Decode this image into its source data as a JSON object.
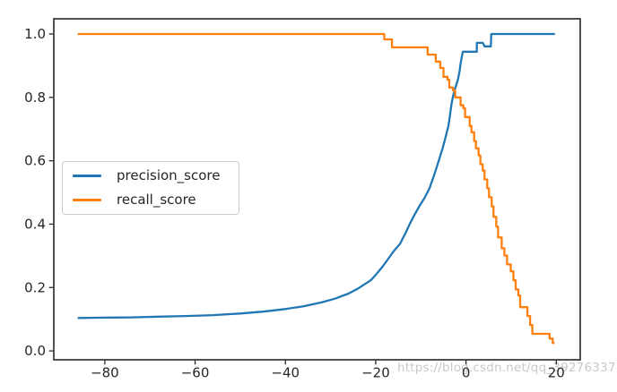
{
  "figure": {
    "background": "#ffffff",
    "watermark_text": "https://blog.csdn.net/qq_39276337"
  },
  "chart_data": {
    "type": "line",
    "title": "",
    "xlabel": "",
    "ylabel": "",
    "grid": false,
    "legend_position": "center-left",
    "axis_color": "#262626",
    "tick_label_color": "#262626",
    "xlim": [
      -91.3,
      25.3
    ],
    "ylim": [
      -0.028,
      1.048
    ],
    "x_ticks": [
      -80,
      -60,
      -40,
      -20,
      0,
      20
    ],
    "x_tick_labels": [
      "−80",
      "−60",
      "−40",
      "−20",
      "0",
      "20"
    ],
    "y_ticks": [
      0.0,
      0.2,
      0.4,
      0.6,
      0.8,
      1.0
    ],
    "y_tick_labels": [
      "0.0",
      "0.2",
      "0.4",
      "0.6",
      "0.8",
      "1.0"
    ],
    "series": [
      {
        "name": "precision_score",
        "color": "#1f77b4",
        "points": [
          [
            -86,
            0.104
          ],
          [
            -80,
            0.105
          ],
          [
            -74,
            0.106
          ],
          [
            -68,
            0.108
          ],
          [
            -62,
            0.11
          ],
          [
            -56,
            0.113
          ],
          [
            -50,
            0.118
          ],
          [
            -45,
            0.124
          ],
          [
            -40,
            0.132
          ],
          [
            -36,
            0.141
          ],
          [
            -32,
            0.153
          ],
          [
            -29,
            0.165
          ],
          [
            -26,
            0.181
          ],
          [
            -24,
            0.196
          ],
          [
            -22.5,
            0.21
          ],
          [
            -21,
            0.224
          ],
          [
            -20,
            0.24
          ],
          [
            -18.7,
            0.262
          ],
          [
            -17.4,
            0.287
          ],
          [
            -16,
            0.315
          ],
          [
            -14.6,
            0.338
          ],
          [
            -13.4,
            0.372
          ],
          [
            -12.4,
            0.402
          ],
          [
            -11.3,
            0.432
          ],
          [
            -10.2,
            0.46
          ],
          [
            -9.2,
            0.482
          ],
          [
            -8.1,
            0.513
          ],
          [
            -7.1,
            0.553
          ],
          [
            -6.1,
            0.597
          ],
          [
            -5.2,
            0.639
          ],
          [
            -4.5,
            0.676
          ],
          [
            -3.9,
            0.71
          ],
          [
            -3.6,
            0.738
          ],
          [
            -3.2,
            0.78
          ],
          [
            -2.8,
            0.808
          ],
          [
            -2.4,
            0.828
          ],
          [
            -1.8,
            0.856
          ],
          [
            -1.4,
            0.885
          ],
          [
            -1.2,
            0.907
          ],
          [
            -0.9,
            0.93
          ],
          [
            -0.7,
            0.944
          ],
          [
            2.4,
            0.944
          ],
          [
            2.4,
            0.972
          ],
          [
            3.7,
            0.972
          ],
          [
            4.1,
            0.961
          ],
          [
            5.5,
            0.961
          ],
          [
            5.6,
            1.0
          ],
          [
            19.7,
            1.0
          ]
        ]
      },
      {
        "name": "recall_score",
        "color": "#ff7f0e",
        "points": [
          [
            -86,
            1.0
          ],
          [
            -18.1,
            1.0
          ],
          [
            -18.1,
            0.983
          ],
          [
            -16.4,
            0.983
          ],
          [
            -16.4,
            0.958
          ],
          [
            -8.5,
            0.958
          ],
          [
            -8.5,
            0.935
          ],
          [
            -6.7,
            0.935
          ],
          [
            -6.7,
            0.913
          ],
          [
            -5.7,
            0.913
          ],
          [
            -5.7,
            0.893
          ],
          [
            -5.0,
            0.893
          ],
          [
            -5.0,
            0.865
          ],
          [
            -4.1,
            0.865
          ],
          [
            -4.1,
            0.856
          ],
          [
            -3.7,
            0.856
          ],
          [
            -3.7,
            0.831
          ],
          [
            -2.9,
            0.831
          ],
          [
            -2.9,
            0.822
          ],
          [
            -2.4,
            0.822
          ],
          [
            -2.4,
            0.8
          ],
          [
            -1.2,
            0.8
          ],
          [
            -1.2,
            0.775
          ],
          [
            -0.6,
            0.775
          ],
          [
            -0.6,
            0.766
          ],
          [
            -0.2,
            0.766
          ],
          [
            -0.2,
            0.738
          ],
          [
            0.8,
            0.738
          ],
          [
            0.8,
            0.71
          ],
          [
            1.2,
            0.71
          ],
          [
            1.2,
            0.69
          ],
          [
            1.8,
            0.69
          ],
          [
            1.8,
            0.662
          ],
          [
            2.2,
            0.662
          ],
          [
            2.2,
            0.639
          ],
          [
            2.8,
            0.639
          ],
          [
            2.8,
            0.617
          ],
          [
            3.2,
            0.617
          ],
          [
            3.2,
            0.589
          ],
          [
            3.7,
            0.589
          ],
          [
            3.7,
            0.569
          ],
          [
            4.1,
            0.569
          ],
          [
            4.1,
            0.541
          ],
          [
            4.7,
            0.541
          ],
          [
            4.7,
            0.513
          ],
          [
            5.1,
            0.513
          ],
          [
            5.1,
            0.485
          ],
          [
            5.7,
            0.485
          ],
          [
            5.7,
            0.456
          ],
          [
            6.1,
            0.456
          ],
          [
            6.1,
            0.423
          ],
          [
            6.7,
            0.423
          ],
          [
            6.7,
            0.392
          ],
          [
            7.1,
            0.392
          ],
          [
            7.1,
            0.358
          ],
          [
            7.9,
            0.358
          ],
          [
            7.9,
            0.324
          ],
          [
            8.5,
            0.324
          ],
          [
            8.5,
            0.301
          ],
          [
            9.1,
            0.301
          ],
          [
            9.1,
            0.273
          ],
          [
            9.9,
            0.273
          ],
          [
            9.9,
            0.251
          ],
          [
            10.5,
            0.251
          ],
          [
            10.5,
            0.223
          ],
          [
            11.0,
            0.223
          ],
          [
            11.0,
            0.194
          ],
          [
            11.6,
            0.194
          ],
          [
            11.6,
            0.175
          ],
          [
            12.0,
            0.175
          ],
          [
            12.0,
            0.138
          ],
          [
            13.6,
            0.138
          ],
          [
            13.6,
            0.11
          ],
          [
            14.2,
            0.11
          ],
          [
            14.2,
            0.082
          ],
          [
            14.7,
            0.082
          ],
          [
            14.7,
            0.054
          ],
          [
            18.5,
            0.054
          ],
          [
            18.5,
            0.039
          ],
          [
            19.2,
            0.039
          ],
          [
            19.2,
            0.025
          ],
          [
            19.6,
            0.025
          ]
        ]
      }
    ]
  }
}
